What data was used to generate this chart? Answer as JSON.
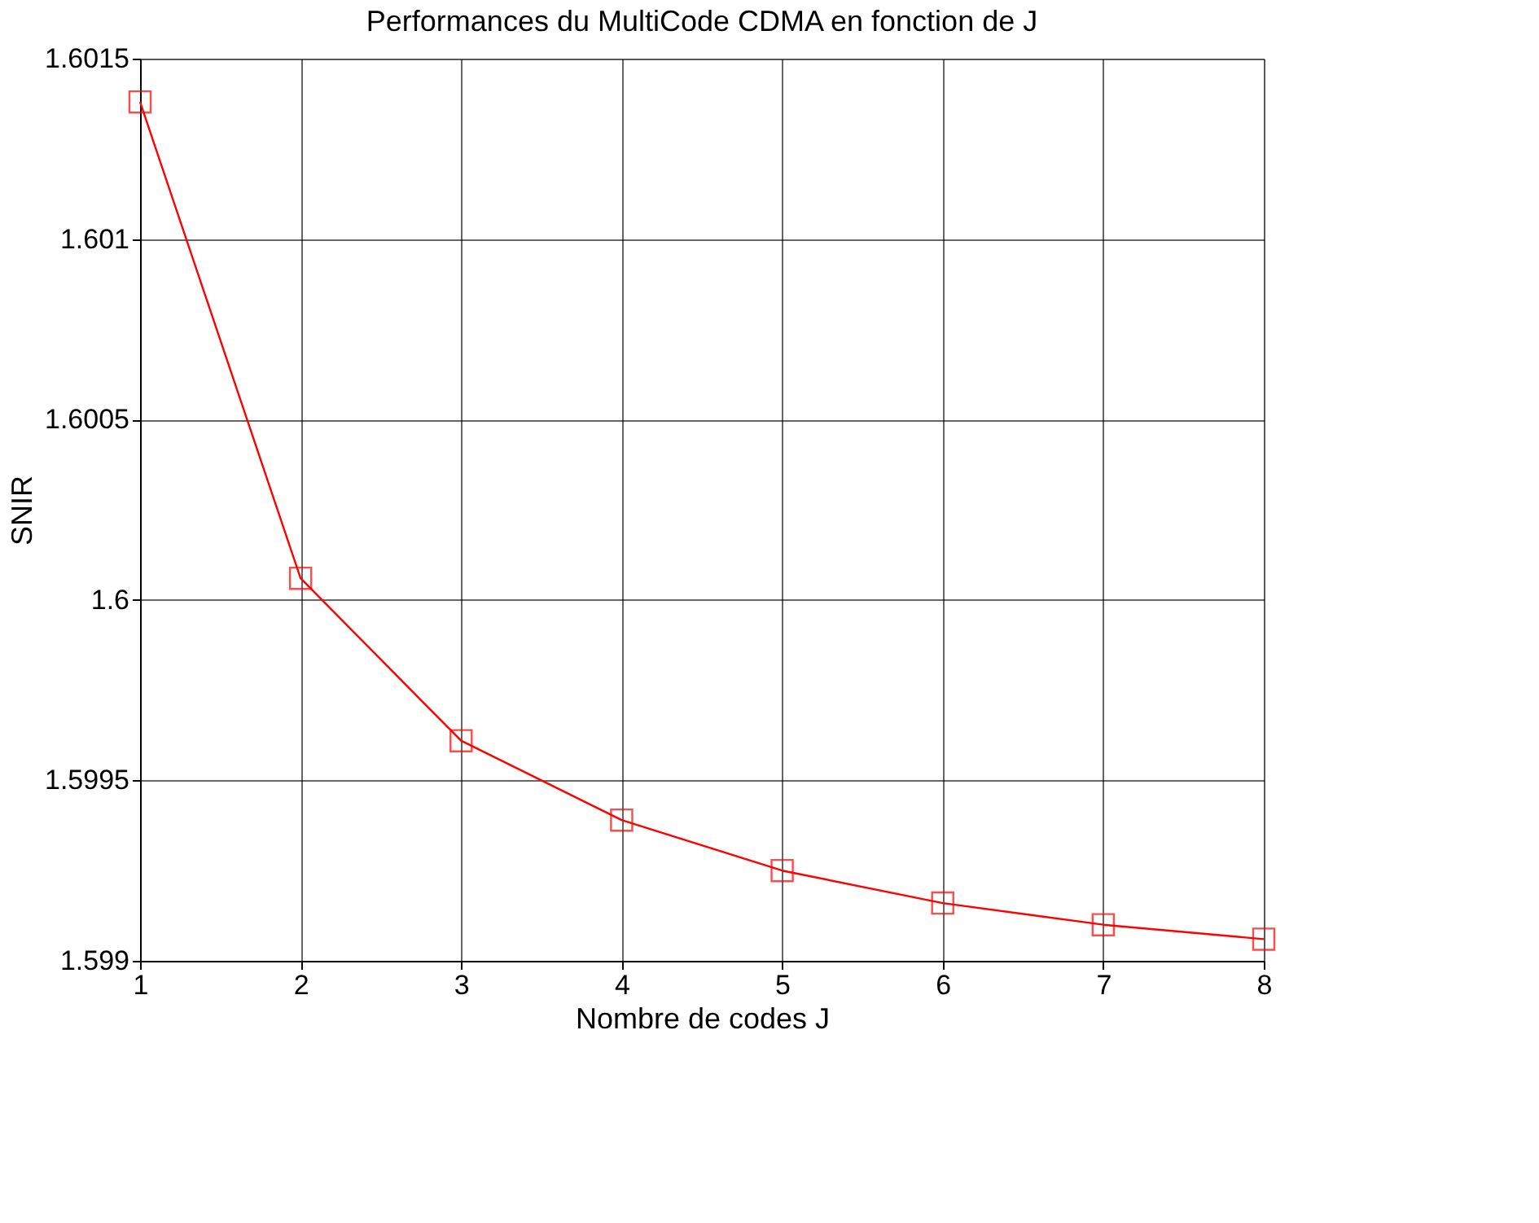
{
  "chart_data": {
    "type": "line",
    "title": "Performances du MultiCode CDMA en fonction de J",
    "xlabel": "Nombre de codes J",
    "ylabel": "SNIR",
    "x": [
      1,
      2,
      3,
      4,
      5,
      6,
      7,
      8
    ],
    "series": [
      {
        "color": "#ff0000",
        "values": [
          1.60138,
          1.60006,
          1.59961,
          1.59939,
          1.59925,
          1.59916,
          1.5991,
          1.59906
        ]
      }
    ],
    "xlim": [
      1,
      8
    ],
    "xticks": [
      1,
      2,
      3,
      4,
      5,
      6,
      7,
      8
    ],
    "ylim": [
      1.599,
      1.6015
    ],
    "yticks": [
      1.599,
      1.5995,
      1.6,
      1.6005,
      1.601,
      1.6015
    ],
    "grid": true,
    "marker": "square",
    "line_style": "solid"
  }
}
